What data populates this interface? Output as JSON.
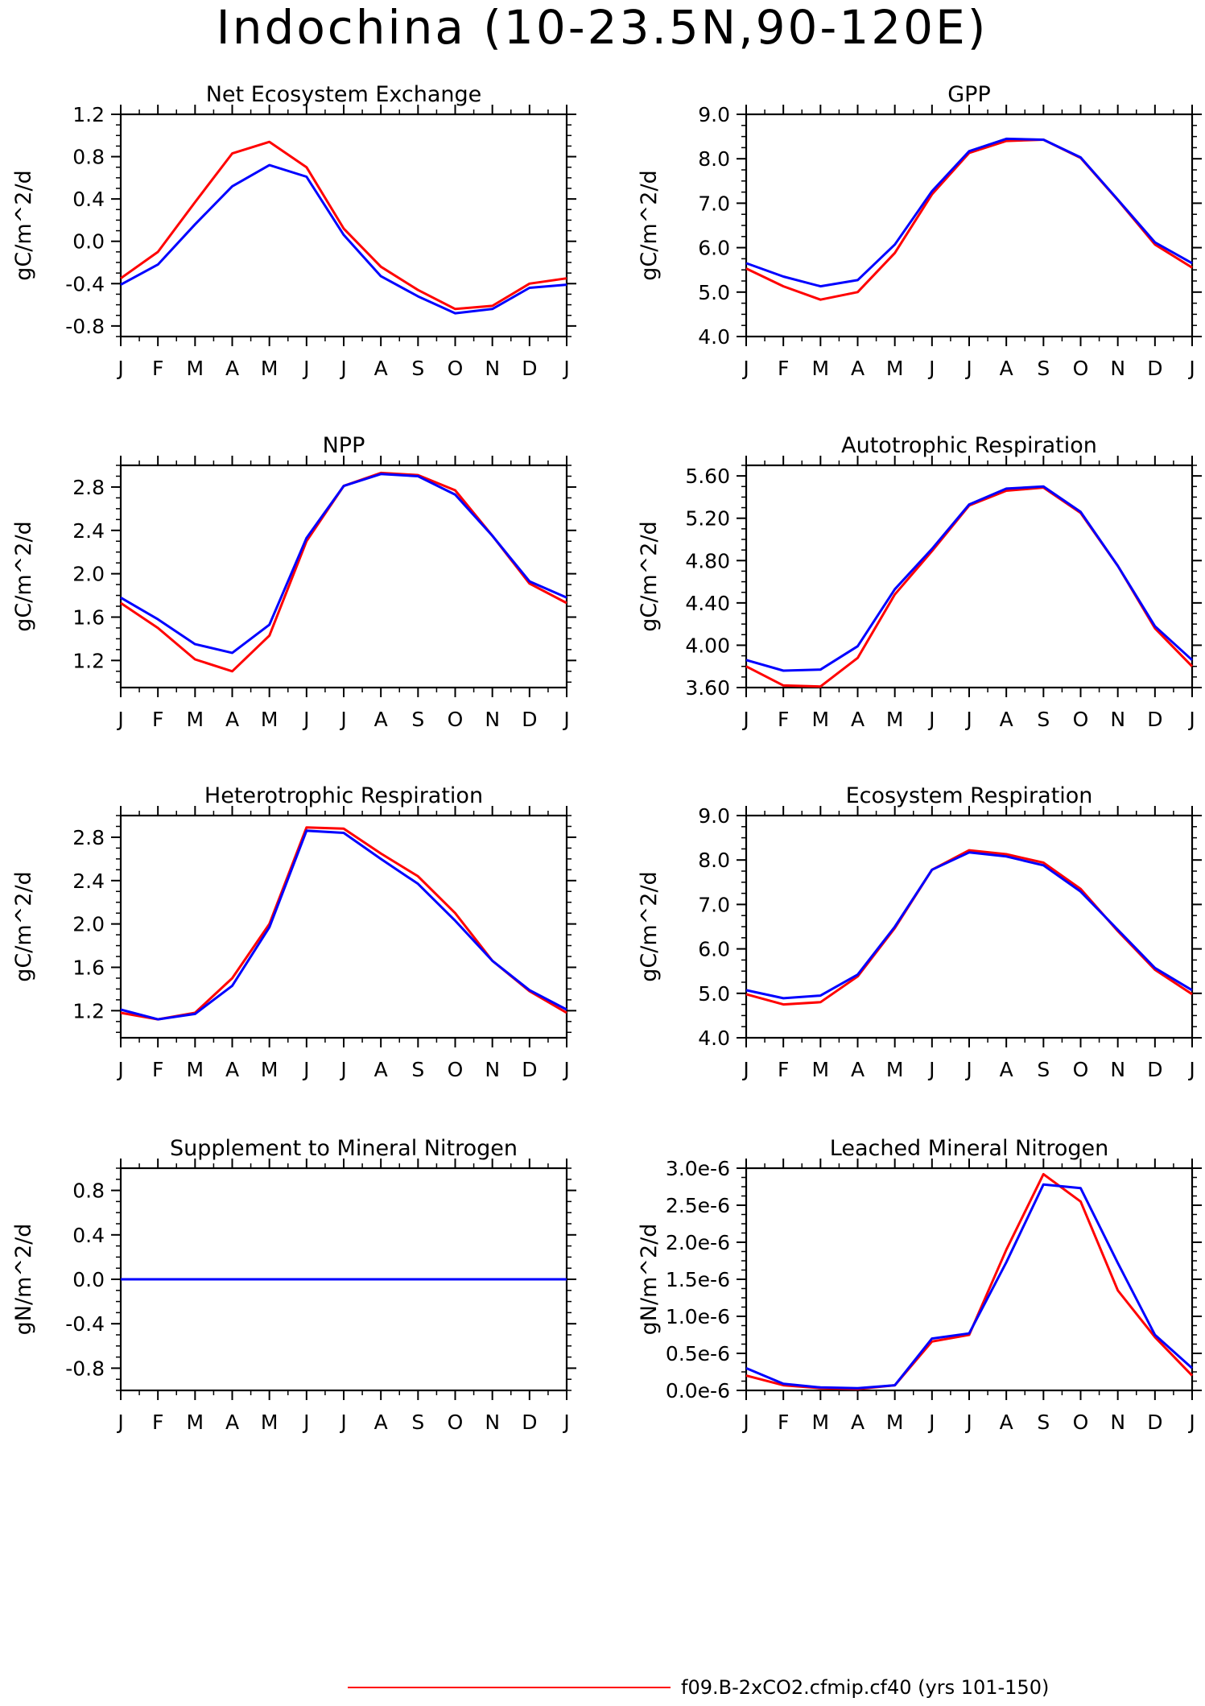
{
  "title": "Indochina (10-23.5N,90-120E)",
  "legend": {
    "entries": [
      {
        "label": "f09.B-2xCO2.cfmip.cf40 (yrs 101-150)",
        "color": "#ff0000"
      }
    ]
  },
  "colors": {
    "red": "#ff0000",
    "blue": "#0000ff"
  },
  "chart_data": [
    {
      "type": "line",
      "title": "Net Ecosystem Exchange",
      "ylabel": "gC/m^2/d",
      "x": [
        "J",
        "F",
        "M",
        "A",
        "M",
        "J",
        "J",
        "A",
        "S",
        "O",
        "N",
        "D",
        "J"
      ],
      "ylim": [
        -0.9,
        1.2
      ],
      "yticks": [
        -0.8,
        -0.4,
        0.0,
        0.4,
        0.8,
        1.2
      ],
      "ytick_labels": [
        "-0.8",
        "-0.4",
        "0.0",
        "0.4",
        "0.8",
        "1.2"
      ],
      "series": [
        {
          "color": "#ff0000",
          "values": [
            -0.35,
            -0.1,
            0.37,
            0.83,
            0.94,
            0.7,
            0.12,
            -0.24,
            -0.46,
            -0.64,
            -0.61,
            -0.4,
            -0.35
          ]
        },
        {
          "color": "#0000ff",
          "values": [
            -0.41,
            -0.22,
            0.16,
            0.52,
            0.72,
            0.61,
            0.06,
            -0.33,
            -0.52,
            -0.68,
            -0.64,
            -0.44,
            -0.41
          ]
        }
      ]
    },
    {
      "type": "line",
      "title": "GPP",
      "ylabel": "gC/m^2/d",
      "x": [
        "J",
        "F",
        "M",
        "A",
        "M",
        "J",
        "J",
        "A",
        "S",
        "O",
        "N",
        "D",
        "J"
      ],
      "ylim": [
        4.0,
        9.0
      ],
      "yticks": [
        4.0,
        5.0,
        6.0,
        7.0,
        8.0,
        9.0
      ],
      "ytick_labels": [
        "4.0",
        "5.0",
        "6.0",
        "7.0",
        "8.0",
        "9.0"
      ],
      "series": [
        {
          "color": "#ff0000",
          "values": [
            5.53,
            5.13,
            4.83,
            5.0,
            5.88,
            7.2,
            8.13,
            8.4,
            8.43,
            8.02,
            7.07,
            6.07,
            5.55
          ]
        },
        {
          "color": "#0000ff",
          "values": [
            5.65,
            5.35,
            5.13,
            5.27,
            6.07,
            7.27,
            8.17,
            8.45,
            8.43,
            8.03,
            7.08,
            6.12,
            5.65
          ]
        }
      ]
    },
    {
      "type": "line",
      "title": "NPP",
      "ylabel": "gC/m^2/d",
      "x": [
        "J",
        "F",
        "M",
        "A",
        "M",
        "J",
        "J",
        "A",
        "S",
        "O",
        "N",
        "D",
        "J"
      ],
      "ylim": [
        0.95,
        3.0
      ],
      "yticks": [
        1.2,
        1.6,
        2.0,
        2.4,
        2.8
      ],
      "ytick_labels": [
        "1.2",
        "1.6",
        "2.0",
        "2.4",
        "2.8"
      ],
      "series": [
        {
          "color": "#ff0000",
          "values": [
            1.73,
            1.5,
            1.21,
            1.1,
            1.43,
            2.3,
            2.81,
            2.93,
            2.91,
            2.77,
            2.35,
            1.91,
            1.73
          ]
        },
        {
          "color": "#0000ff",
          "values": [
            1.78,
            1.58,
            1.35,
            1.27,
            1.53,
            2.33,
            2.81,
            2.92,
            2.9,
            2.73,
            2.35,
            1.93,
            1.78
          ]
        }
      ]
    },
    {
      "type": "line",
      "title": "Autotrophic Respiration",
      "ylabel": "gC/m^2/d",
      "x": [
        "J",
        "F",
        "M",
        "A",
        "M",
        "J",
        "J",
        "A",
        "S",
        "O",
        "N",
        "D",
        "J"
      ],
      "ylim": [
        3.6,
        5.7
      ],
      "yticks": [
        3.6,
        4.0,
        4.4,
        4.8,
        5.2,
        5.6
      ],
      "ytick_labels": [
        "3.60",
        "4.00",
        "4.40",
        "4.80",
        "5.20",
        "5.60"
      ],
      "series": [
        {
          "color": "#ff0000",
          "values": [
            3.8,
            3.62,
            3.61,
            3.88,
            4.48,
            4.89,
            5.32,
            5.46,
            5.49,
            5.25,
            4.75,
            4.16,
            3.8
          ]
        },
        {
          "color": "#0000ff",
          "values": [
            3.86,
            3.76,
            3.77,
            3.99,
            4.53,
            4.91,
            5.33,
            5.48,
            5.5,
            5.26,
            4.75,
            4.18,
            3.86
          ]
        }
      ]
    },
    {
      "type": "line",
      "title": "Heterotrophic Respiration",
      "ylabel": "gC/m^2/d",
      "x": [
        "J",
        "F",
        "M",
        "A",
        "M",
        "J",
        "J",
        "A",
        "S",
        "O",
        "N",
        "D",
        "J"
      ],
      "ylim": [
        0.95,
        3.0
      ],
      "yticks": [
        1.2,
        1.6,
        2.0,
        2.4,
        2.8
      ],
      "ytick_labels": [
        "1.2",
        "1.6",
        "2.0",
        "2.4",
        "2.8"
      ],
      "series": [
        {
          "color": "#ff0000",
          "values": [
            1.18,
            1.12,
            1.18,
            1.5,
            2.0,
            2.89,
            2.88,
            2.65,
            2.44,
            2.1,
            1.66,
            1.38,
            1.18
          ]
        },
        {
          "color": "#0000ff",
          "values": [
            1.21,
            1.12,
            1.17,
            1.43,
            1.97,
            2.86,
            2.84,
            2.6,
            2.37,
            2.03,
            1.66,
            1.39,
            1.21
          ]
        }
      ]
    },
    {
      "type": "line",
      "title": "Ecosystem Respiration",
      "ylabel": "gC/m^2/d",
      "x": [
        "J",
        "F",
        "M",
        "A",
        "M",
        "J",
        "J",
        "A",
        "S",
        "O",
        "N",
        "D",
        "J"
      ],
      "ylim": [
        4.0,
        9.0
      ],
      "yticks": [
        4.0,
        5.0,
        6.0,
        7.0,
        8.0,
        9.0
      ],
      "ytick_labels": [
        "4.0",
        "5.0",
        "6.0",
        "7.0",
        "8.0",
        "9.0"
      ],
      "series": [
        {
          "color": "#ff0000",
          "values": [
            4.98,
            4.75,
            4.8,
            5.38,
            6.47,
            7.78,
            8.22,
            8.13,
            7.94,
            7.35,
            6.4,
            5.53,
            4.98
          ]
        },
        {
          "color": "#0000ff",
          "values": [
            5.07,
            4.89,
            4.95,
            5.42,
            6.5,
            7.78,
            8.17,
            8.08,
            7.88,
            7.29,
            6.43,
            5.57,
            5.07
          ]
        }
      ]
    },
    {
      "type": "line",
      "title": "Supplement to Mineral Nitrogen",
      "ylabel": "gN/m^2/d",
      "x": [
        "J",
        "F",
        "M",
        "A",
        "M",
        "J",
        "J",
        "A",
        "S",
        "O",
        "N",
        "D",
        "J"
      ],
      "ylim": [
        -1.0,
        1.0
      ],
      "yticks": [
        -0.8,
        -0.4,
        0.0,
        0.4,
        0.8
      ],
      "ytick_labels": [
        "-0.8",
        "-0.4",
        "0.0",
        "0.4",
        "0.8"
      ],
      "series": [
        {
          "color": "#ff0000",
          "values": [
            0,
            0,
            0,
            0,
            0,
            0,
            0,
            0,
            0,
            0,
            0,
            0,
            0
          ]
        },
        {
          "color": "#0000ff",
          "values": [
            0,
            0,
            0,
            0,
            0,
            0,
            0,
            0,
            0,
            0,
            0,
            0,
            0
          ]
        }
      ]
    },
    {
      "type": "line",
      "title": "Leached Mineral Nitrogen",
      "ylabel": "gN/m^2/d",
      "x": [
        "J",
        "F",
        "M",
        "A",
        "M",
        "J",
        "J",
        "A",
        "S",
        "O",
        "N",
        "D",
        "J"
      ],
      "ylim": [
        0.0,
        3e-06
      ],
      "yticks": [
        0.0,
        5e-07,
        1e-06,
        1.5e-06,
        2e-06,
        2.5e-06,
        3e-06
      ],
      "ytick_labels": [
        "0.0e-6",
        "0.5e-6",
        "1.0e-6",
        "1.5e-6",
        "2.0e-6",
        "2.5e-6",
        "3.0e-6"
      ],
      "series": [
        {
          "color": "#ff0000",
          "values": [
            2e-07,
            7e-08,
            3e-08,
            2e-08,
            7e-08,
            6.6e-07,
            7.5e-07,
            1.9e-06,
            2.92e-06,
            2.55e-06,
            1.35e-06,
            7.2e-07,
            2e-07
          ]
        },
        {
          "color": "#0000ff",
          "values": [
            3e-07,
            9e-08,
            4e-08,
            3e-08,
            7e-08,
            7e-07,
            7.7e-07,
            1.73e-06,
            2.78e-06,
            2.73e-06,
            1.72e-06,
            7.5e-07,
            3e-07
          ]
        }
      ]
    }
  ]
}
